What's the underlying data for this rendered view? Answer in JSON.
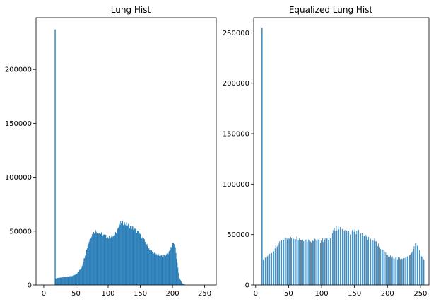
{
  "chart_data": [
    {
      "type": "bar",
      "title": "Lung Hist",
      "xlabel": "",
      "ylabel": "",
      "xlim": [
        -12,
        268
      ],
      "ylim": [
        0,
        248000
      ],
      "xticks": [
        0,
        50,
        100,
        150,
        200,
        250
      ],
      "yticks": [
        0,
        50000,
        100000,
        150000,
        200000
      ],
      "color": "#1f77b4",
      "bin_width": 1,
      "spike": {
        "x": 17,
        "y": 237000
      },
      "profile": [
        [
          18,
          6000
        ],
        [
          25,
          7000
        ],
        [
          35,
          7500
        ],
        [
          45,
          8500
        ],
        [
          52,
          11000
        ],
        [
          58,
          16000
        ],
        [
          63,
          26000
        ],
        [
          68,
          37000
        ],
        [
          72,
          44000
        ],
        [
          76,
          48000
        ],
        [
          80,
          50000
        ],
        [
          90,
          47000
        ],
        [
          100,
          44000
        ],
        [
          108,
          45000
        ],
        [
          114,
          52000
        ],
        [
          120,
          58000
        ],
        [
          126,
          57000
        ],
        [
          132,
          55000
        ],
        [
          140,
          52000
        ],
        [
          148,
          48000
        ],
        [
          156,
          41000
        ],
        [
          164,
          33000
        ],
        [
          172,
          29000
        ],
        [
          180,
          27000
        ],
        [
          188,
          27500
        ],
        [
          194,
          30000
        ],
        [
          198,
          36000
        ],
        [
          201,
          40000
        ],
        [
          204,
          34000
        ],
        [
          207,
          20000
        ],
        [
          210,
          7000
        ],
        [
          214,
          2000
        ],
        [
          218,
          500
        ],
        [
          220,
          0
        ]
      ]
    },
    {
      "type": "bar",
      "title": "Equalized Lung Hist",
      "xlabel": "",
      "ylabel": "",
      "xlim": [
        -3,
        263
      ],
      "ylim": [
        0,
        265000
      ],
      "xticks": [
        0,
        50,
        100,
        150,
        200,
        250
      ],
      "yticks": [
        0,
        50000,
        100000,
        150000,
        200000,
        250000
      ],
      "color": "#1f77b4",
      "bin_width": 0.6,
      "spike": {
        "x": 9,
        "y": 255000
      },
      "profile": [
        [
          11,
          25000
        ],
        [
          16,
          28000
        ],
        [
          22,
          32000
        ],
        [
          30,
          38000
        ],
        [
          40,
          45000
        ],
        [
          50,
          48500
        ],
        [
          60,
          48000
        ],
        [
          70,
          46000
        ],
        [
          80,
          45000
        ],
        [
          90,
          45000
        ],
        [
          100,
          45000
        ],
        [
          110,
          47000
        ],
        [
          120,
          56000
        ],
        [
          125,
          58000
        ],
        [
          130,
          55000
        ],
        [
          140,
          53000
        ],
        [
          150,
          54000
        ],
        [
          160,
          53000
        ],
        [
          170,
          48000
        ],
        [
          180,
          45000
        ],
        [
          190,
          37000
        ],
        [
          200,
          30000
        ],
        [
          210,
          27000
        ],
        [
          220,
          26500
        ],
        [
          230,
          28000
        ],
        [
          238,
          35000
        ],
        [
          243,
          44000
        ],
        [
          248,
          35000
        ],
        [
          252,
          28000
        ],
        [
          255,
          24000
        ]
      ]
    }
  ]
}
